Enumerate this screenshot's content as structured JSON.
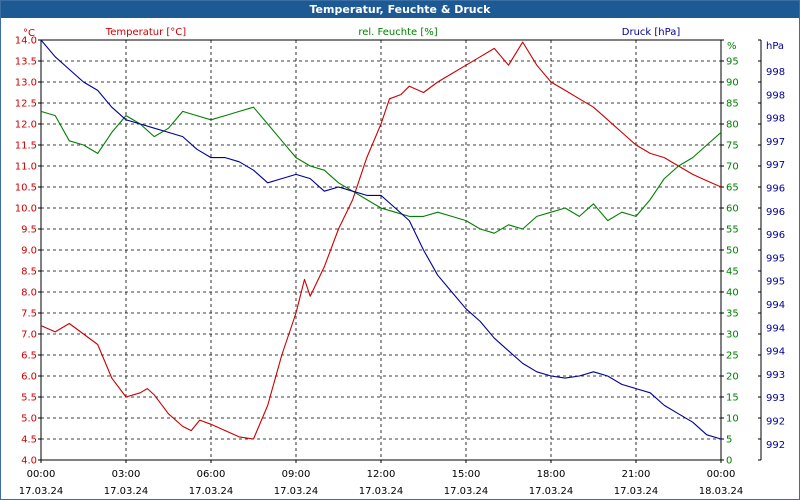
{
  "window": {
    "title": "Temperatur, Feuchte & Druck"
  },
  "colors": {
    "temperature": "#cc0000",
    "humidity": "#008000",
    "pressure": "#000099",
    "titlebar": "#1d5a94",
    "grid": "#000000",
    "text": "#000000"
  },
  "chart_data": {
    "type": "line",
    "title": "Temperatur, Feuchte & Druck",
    "grid": true,
    "legend": "top",
    "x_ticks": [
      {
        "time": "00:00",
        "date": "17.03.24"
      },
      {
        "time": "03:00",
        "date": "17.03.24"
      },
      {
        "time": "06:00",
        "date": "17.03.24"
      },
      {
        "time": "09:00",
        "date": "17.03.24"
      },
      {
        "time": "12:00",
        "date": "17.03.24"
      },
      {
        "time": "15:00",
        "date": "17.03.24"
      },
      {
        "time": "18:00",
        "date": "17.03.24"
      },
      {
        "time": "21:00",
        "date": "17.03.24"
      },
      {
        "time": "00:00",
        "date": "18.03.24"
      }
    ],
    "x_range_hours": [
      0,
      24
    ],
    "axes": {
      "left": {
        "unit": "°C",
        "range": [
          4.0,
          14.0
        ],
        "ticks": [
          "4.0",
          "4.5",
          "5.0",
          "5.5",
          "6.0",
          "6.5",
          "7.0",
          "7.5",
          "8.0",
          "8.5",
          "9.0",
          "9.5",
          "10.0",
          "10.5",
          "11.0",
          "11.5",
          "12.0",
          "12.5",
          "13.0",
          "13.5",
          "14.0"
        ]
      },
      "right1": {
        "unit": "%",
        "range": [
          0,
          100
        ],
        "ticks": [
          "0",
          "5",
          "10",
          "15",
          "20",
          "25",
          "30",
          "35",
          "40",
          "45",
          "50",
          "55",
          "60",
          "65",
          "70",
          "75",
          "80",
          "85",
          "90",
          "95",
          "100"
        ]
      },
      "right2": {
        "unit": "hPa",
        "ticks": [
          "992",
          "992",
          "993",
          "993",
          "994",
          "994",
          "994",
          "995",
          "995",
          "996",
          "996",
          "996",
          "997",
          "997",
          "998",
          "998",
          "998"
        ]
      }
    },
    "series": [
      {
        "name": "Temperatur [°C]",
        "axis": "left",
        "points": [
          [
            0.0,
            7.2
          ],
          [
            0.5,
            7.05
          ],
          [
            1.0,
            7.25
          ],
          [
            1.5,
            7.0
          ],
          [
            2.0,
            6.75
          ],
          [
            2.5,
            5.95
          ],
          [
            3.0,
            5.5
          ],
          [
            3.5,
            5.6
          ],
          [
            3.75,
            5.7
          ],
          [
            4.0,
            5.55
          ],
          [
            4.5,
            5.1
          ],
          [
            5.0,
            4.8
          ],
          [
            5.3,
            4.7
          ],
          [
            5.6,
            4.95
          ],
          [
            6.0,
            4.85
          ],
          [
            6.5,
            4.7
          ],
          [
            7.0,
            4.55
          ],
          [
            7.5,
            4.5
          ],
          [
            8.0,
            5.3
          ],
          [
            8.5,
            6.5
          ],
          [
            9.0,
            7.5
          ],
          [
            9.3,
            8.3
          ],
          [
            9.5,
            7.9
          ],
          [
            10.0,
            8.6
          ],
          [
            10.5,
            9.5
          ],
          [
            11.0,
            10.2
          ],
          [
            11.5,
            11.2
          ],
          [
            12.0,
            12.0
          ],
          [
            12.3,
            12.6
          ],
          [
            12.7,
            12.7
          ],
          [
            13.0,
            12.9
          ],
          [
            13.5,
            12.75
          ],
          [
            14.0,
            13.0
          ],
          [
            14.5,
            13.2
          ],
          [
            15.0,
            13.4
          ],
          [
            15.5,
            13.6
          ],
          [
            16.0,
            13.8
          ],
          [
            16.5,
            13.4
          ],
          [
            17.0,
            13.95
          ],
          [
            17.5,
            13.4
          ],
          [
            18.0,
            13.0
          ],
          [
            18.5,
            12.8
          ],
          [
            19.0,
            12.6
          ],
          [
            19.5,
            12.4
          ],
          [
            20.0,
            12.1
          ],
          [
            20.5,
            11.8
          ],
          [
            21.0,
            11.5
          ],
          [
            21.5,
            11.3
          ],
          [
            22.0,
            11.2
          ],
          [
            22.5,
            11.0
          ],
          [
            23.0,
            10.8
          ],
          [
            23.5,
            10.65
          ],
          [
            24.0,
            10.5
          ]
        ]
      },
      {
        "name": "rel. Feuchte [%]",
        "axis": "right1",
        "points": [
          [
            0.0,
            83
          ],
          [
            0.5,
            82
          ],
          [
            1.0,
            76
          ],
          [
            1.5,
            75
          ],
          [
            2.0,
            73
          ],
          [
            2.5,
            78
          ],
          [
            3.0,
            82
          ],
          [
            3.5,
            80
          ],
          [
            4.0,
            77
          ],
          [
            4.5,
            79
          ],
          [
            5.0,
            83
          ],
          [
            5.5,
            82
          ],
          [
            6.0,
            81
          ],
          [
            6.5,
            82
          ],
          [
            7.0,
            83
          ],
          [
            7.5,
            84
          ],
          [
            8.0,
            80
          ],
          [
            8.5,
            76
          ],
          [
            9.0,
            72
          ],
          [
            9.5,
            70
          ],
          [
            10.0,
            69
          ],
          [
            10.5,
            66
          ],
          [
            11.0,
            64
          ],
          [
            11.5,
            62
          ],
          [
            12.0,
            60
          ],
          [
            12.5,
            59
          ],
          [
            13.0,
            58
          ],
          [
            13.5,
            58
          ],
          [
            14.0,
            59
          ],
          [
            14.5,
            58
          ],
          [
            15.0,
            57
          ],
          [
            15.5,
            55
          ],
          [
            16.0,
            54
          ],
          [
            16.5,
            56
          ],
          [
            17.0,
            55
          ],
          [
            17.5,
            58
          ],
          [
            18.0,
            59
          ],
          [
            18.5,
            60
          ],
          [
            19.0,
            58
          ],
          [
            19.5,
            61
          ],
          [
            20.0,
            57
          ],
          [
            20.5,
            59
          ],
          [
            21.0,
            58
          ],
          [
            21.5,
            62
          ],
          [
            22.0,
            67
          ],
          [
            22.5,
            70
          ],
          [
            23.0,
            72
          ],
          [
            23.5,
            75
          ],
          [
            24.0,
            78
          ]
        ]
      },
      {
        "name": "Druck [hPa]",
        "axis": "right2",
        "points": [
          [
            0.0,
            14.0
          ],
          [
            0.5,
            13.6
          ],
          [
            1.0,
            13.3
          ],
          [
            1.5,
            13.0
          ],
          [
            2.0,
            12.8
          ],
          [
            2.5,
            12.4
          ],
          [
            3.0,
            12.1
          ],
          [
            3.5,
            12.0
          ],
          [
            4.0,
            11.9
          ],
          [
            4.5,
            11.8
          ],
          [
            5.0,
            11.7
          ],
          [
            5.5,
            11.4
          ],
          [
            6.0,
            11.2
          ],
          [
            6.5,
            11.2
          ],
          [
            7.0,
            11.1
          ],
          [
            7.5,
            10.9
          ],
          [
            8.0,
            10.6
          ],
          [
            8.5,
            10.7
          ],
          [
            9.0,
            10.8
          ],
          [
            9.5,
            10.7
          ],
          [
            10.0,
            10.4
          ],
          [
            10.5,
            10.5
          ],
          [
            11.0,
            10.4
          ],
          [
            11.5,
            10.3
          ],
          [
            12.0,
            10.3
          ],
          [
            12.5,
            10.0
          ],
          [
            13.0,
            9.7
          ],
          [
            13.5,
            9.0
          ],
          [
            14.0,
            8.4
          ],
          [
            14.5,
            8.0
          ],
          [
            15.0,
            7.6
          ],
          [
            15.5,
            7.3
          ],
          [
            16.0,
            6.9
          ],
          [
            16.5,
            6.6
          ],
          [
            17.0,
            6.3
          ],
          [
            17.5,
            6.1
          ],
          [
            18.0,
            6.0
          ],
          [
            18.5,
            5.95
          ],
          [
            19.0,
            6.0
          ],
          [
            19.5,
            6.1
          ],
          [
            20.0,
            6.0
          ],
          [
            20.5,
            5.8
          ],
          [
            21.0,
            5.7
          ],
          [
            21.5,
            5.6
          ],
          [
            22.0,
            5.3
          ],
          [
            22.5,
            5.1
          ],
          [
            23.0,
            4.9
          ],
          [
            23.5,
            4.6
          ],
          [
            24.0,
            4.5
          ]
        ]
      }
    ]
  }
}
